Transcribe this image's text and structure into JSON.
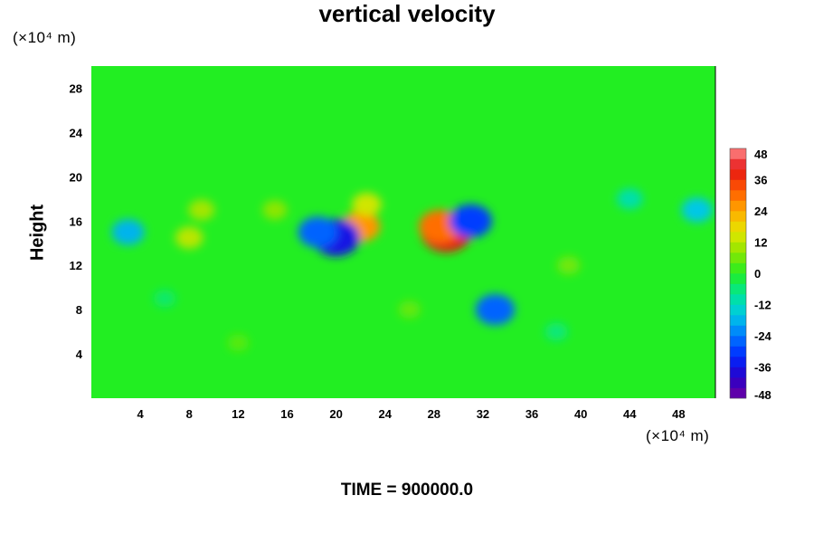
{
  "chart_data": {
    "type": "heatmap",
    "title": "vertical velocity",
    "ylabel": "Height",
    "xlabel": "",
    "x_unit": "(×10⁴ m)",
    "y_unit": "(×10⁴ m)",
    "x_ticks": [
      4,
      8,
      12,
      16,
      20,
      24,
      28,
      32,
      36,
      40,
      44,
      48
    ],
    "y_ticks": [
      4,
      8,
      12,
      16,
      20,
      24,
      28
    ],
    "xlim": [
      0,
      51
    ],
    "ylim": [
      0,
      30
    ],
    "colorbar": {
      "ticks": [
        48,
        36,
        24,
        12,
        0,
        -12,
        -24,
        -36,
        -48
      ],
      "range": [
        -48,
        48
      ],
      "step": 4
    },
    "features": [
      {
        "x": 29,
        "y": 15,
        "value": 40
      },
      {
        "x": 28.5,
        "y": 15.5,
        "value": 30
      },
      {
        "x": 22,
        "y": 15.5,
        "value": 26
      },
      {
        "x": 22.5,
        "y": 17.5,
        "value": 14
      },
      {
        "x": 20,
        "y": 14.5,
        "value": -36
      },
      {
        "x": 18.5,
        "y": 15,
        "value": -26
      },
      {
        "x": 31,
        "y": 16,
        "value": -30
      },
      {
        "x": 33,
        "y": 8,
        "value": -26
      },
      {
        "x": 8,
        "y": 14.5,
        "value": 12
      },
      {
        "x": 9,
        "y": 17,
        "value": 10
      },
      {
        "x": 3,
        "y": 15,
        "value": -18
      },
      {
        "x": 49.5,
        "y": 17,
        "value": -16
      },
      {
        "x": 44,
        "y": 18,
        "value": -10
      },
      {
        "x": 39,
        "y": 12,
        "value": 6
      },
      {
        "x": 15,
        "y": 17,
        "value": 8
      },
      {
        "x": 26,
        "y": 8,
        "value": 5
      },
      {
        "x": 12,
        "y": 5,
        "value": 4
      },
      {
        "x": 38,
        "y": 6,
        "value": -6
      },
      {
        "x": 6,
        "y": 9,
        "value": -5
      }
    ],
    "background_value": 0
  },
  "footer": {
    "time_label": "TIME = 900000.0"
  }
}
